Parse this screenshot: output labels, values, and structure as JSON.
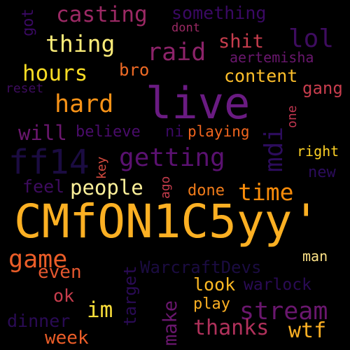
{
  "cloud": {
    "background": "#000000",
    "words": [
      {
        "text": "CMfON1C5yy'",
        "color": "#fcb023",
        "vertical": false
      },
      {
        "text": "live",
        "color": "#6a1b82",
        "vertical": false
      },
      {
        "text": "ff14",
        "color": "#1b0c41",
        "vertical": false
      },
      {
        "text": "casting",
        "color": "#9b2964",
        "vertical": false
      },
      {
        "text": "something",
        "color": "#3a0963",
        "vertical": false
      },
      {
        "text": "got",
        "color": "#3a0963",
        "vertical": true
      },
      {
        "text": "dont",
        "color": "#9b2964",
        "vertical": false
      },
      {
        "text": "lol",
        "color": "#3e0c5f",
        "vertical": false
      },
      {
        "text": "thing",
        "color": "#fcec79",
        "vertical": false
      },
      {
        "text": "shit",
        "color": "#c73d4d",
        "vertical": false
      },
      {
        "text": "raid",
        "color": "#8c2369",
        "vertical": false
      },
      {
        "text": "aertemisha",
        "color": "#6a176e",
        "vertical": false
      },
      {
        "text": "hours",
        "color": "#f9dc24",
        "vertical": false
      },
      {
        "text": "bro",
        "color": "#ee6a25",
        "vertical": false
      },
      {
        "text": "content",
        "color": "#fdbf2b",
        "vertical": false
      },
      {
        "text": "reset",
        "color": "#3e0c5f",
        "vertical": false
      },
      {
        "text": "gang",
        "color": "#c73d4d",
        "vertical": false
      },
      {
        "text": "hard",
        "color": "#f79217",
        "vertical": false
      },
      {
        "text": "one",
        "color": "#c0364f",
        "vertical": true
      },
      {
        "text": "mdi",
        "color": "#2c0c5c",
        "vertical": true
      },
      {
        "text": "will",
        "color": "#6a176e",
        "vertical": false
      },
      {
        "text": "believe",
        "color": "#4a0c6b",
        "vertical": false
      },
      {
        "text": "ni",
        "color": "#3a0963",
        "vertical": false
      },
      {
        "text": "playing",
        "color": "#f0651e",
        "vertical": false
      },
      {
        "text": "getting",
        "color": "#5a1170",
        "vertical": false
      },
      {
        "text": "right",
        "color": "#fcd025",
        "vertical": false
      },
      {
        "text": "key",
        "color": "#d64b40",
        "vertical": true
      },
      {
        "text": "new",
        "color": "#2c0c5c",
        "vertical": false
      },
      {
        "text": "feel",
        "color": "#3e0c5f",
        "vertical": false
      },
      {
        "text": "people",
        "color": "#fcf09a",
        "vertical": false
      },
      {
        "text": "ago",
        "color": "#c73d4d",
        "vertical": true
      },
      {
        "text": "done",
        "color": "#ef7b1a",
        "vertical": false
      },
      {
        "text": "time",
        "color": "#f98c0a",
        "vertical": false
      },
      {
        "text": "game",
        "color": "#eb5d28",
        "vertical": false
      },
      {
        "text": "man",
        "color": "#fce287",
        "vertical": false
      },
      {
        "text": "even",
        "color": "#e4572f",
        "vertical": false
      },
      {
        "text": "target",
        "color": "#2a0b55",
        "vertical": true
      },
      {
        "text": "WarcraftDevs",
        "color": "#1b0c41",
        "vertical": false
      },
      {
        "text": "look",
        "color": "#fcb823",
        "vertical": false
      },
      {
        "text": "warlock",
        "color": "#2a0b55",
        "vertical": false
      },
      {
        "text": "ok",
        "color": "#c73d4d",
        "vertical": false
      },
      {
        "text": "make",
        "color": "#6a176e",
        "vertical": true
      },
      {
        "text": "im",
        "color": "#fcdf3a",
        "vertical": false
      },
      {
        "text": "stream",
        "color": "#6a176e",
        "vertical": false
      },
      {
        "text": "play",
        "color": "#fcb023",
        "vertical": false
      },
      {
        "text": "dinner",
        "color": "#2a0b55",
        "vertical": false
      },
      {
        "text": "week",
        "color": "#eb5d28",
        "vertical": false
      },
      {
        "text": "thanks",
        "color": "#b0315b",
        "vertical": false
      },
      {
        "text": "wtf",
        "color": "#fcb023",
        "vertical": false
      }
    ]
  }
}
